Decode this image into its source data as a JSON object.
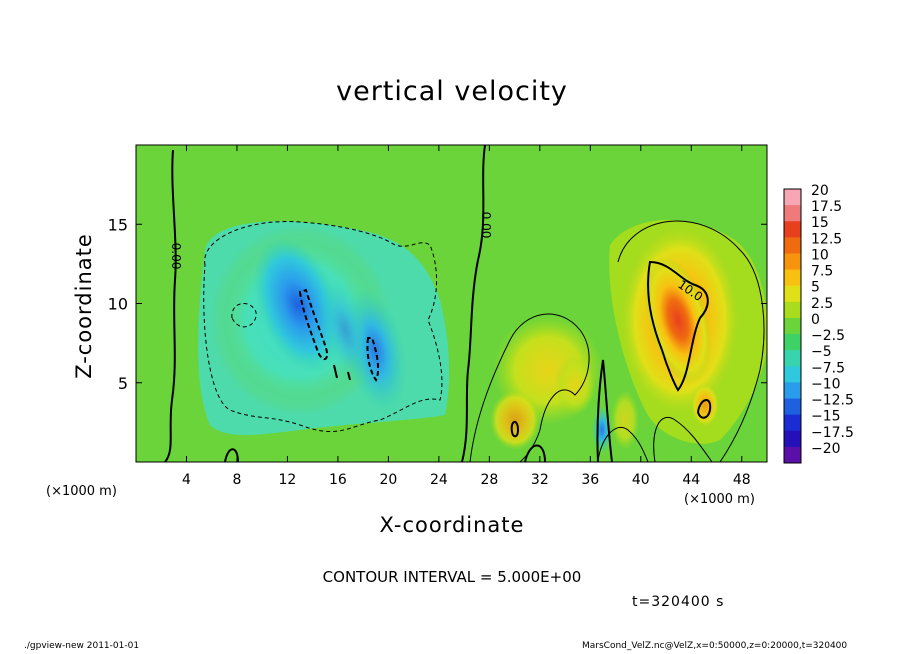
{
  "chart_data": {
    "type": "heatmap",
    "title": "vertical velocity",
    "xlabel": "X-coordinate",
    "ylabel": "Z-coordinate",
    "x_multiplier_label": "(×1000 m)",
    "x_ticks": [
      4,
      8,
      12,
      16,
      20,
      24,
      28,
      32,
      36,
      40,
      44,
      48
    ],
    "y_ticks": [
      5,
      10,
      15
    ],
    "xlim": [
      0,
      50
    ],
    "ylim": [
      0,
      20
    ],
    "colorbar": {
      "labels": [
        "20",
        "17.5",
        "15",
        "12.5",
        "10",
        "7.5",
        "5",
        "2.5",
        "0",
        "−2.5",
        "−5",
        "−7.5",
        "−10",
        "−12.5",
        "−15",
        "−17.5",
        "−20"
      ],
      "levels": [
        20,
        17.5,
        15,
        12.5,
        10,
        7.5,
        5,
        2.5,
        0,
        -2.5,
        -5,
        -7.5,
        -10,
        -12.5,
        -15,
        -17.5,
        -20
      ],
      "colors": [
        "#f6a6b4",
        "#ef7a7a",
        "#e8401e",
        "#f06a10",
        "#f6940e",
        "#f8c010",
        "#e0e018",
        "#a8dc1c",
        "#6ad43a",
        "#3ed266",
        "#38d4ae",
        "#30c8dc",
        "#2a9cec",
        "#1e60e0",
        "#1c2cd4",
        "#2410b8",
        "#5a10a8"
      ]
    },
    "contour_labels": [
      "0.00",
      "0.00",
      "10.0"
    ],
    "contour_interval_text": "CONTOUR INTERVAL = 5.000E+00",
    "time_text": "t=320400  s",
    "features": [
      {
        "kind": "downdraft",
        "x": 13.5,
        "z": 10,
        "w": -10
      },
      {
        "kind": "downdraft",
        "x": 19,
        "z": 7,
        "w": -8
      },
      {
        "kind": "updraft",
        "x": 43,
        "z": 9,
        "w": 12
      },
      {
        "kind": "updraft",
        "x": 31,
        "z": 6,
        "w": 4
      },
      {
        "kind": "updraft",
        "x": 47,
        "z": 3,
        "w": 3
      }
    ]
  },
  "footer": {
    "left": "./gpview-new   2011-01-01",
    "right": "MarsCond_VelZ.nc@VelZ,x=0:50000,z=0:20000,t=320400"
  }
}
